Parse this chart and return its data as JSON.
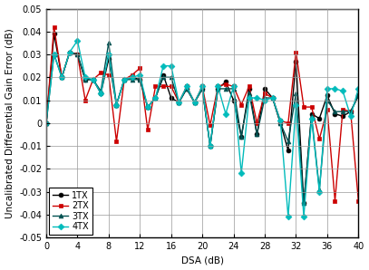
{
  "xlabel": "DSA (dB)",
  "ylabel": "Uncalibrated Differential Gain Error (dB)",
  "xlim": [
    0,
    40
  ],
  "ylim": [
    -0.05,
    0.05
  ],
  "xticks": [
    0,
    4,
    8,
    12,
    16,
    20,
    24,
    28,
    32,
    36,
    40
  ],
  "yticks": [
    -0.05,
    -0.04,
    -0.03,
    -0.02,
    -0.01,
    0.0,
    0.01,
    0.02,
    0.03,
    0.04,
    0.05
  ],
  "dsa": [
    0,
    1,
    2,
    3,
    4,
    5,
    6,
    7,
    8,
    9,
    10,
    11,
    12,
    13,
    14,
    15,
    16,
    17,
    18,
    19,
    20,
    21,
    22,
    23,
    24,
    25,
    26,
    27,
    28,
    29,
    30,
    31,
    32,
    33,
    34,
    35,
    36,
    37,
    38,
    39,
    40
  ],
  "tx1": [
    0.0,
    0.039,
    0.02,
    0.031,
    0.03,
    0.019,
    0.019,
    0.013,
    0.028,
    0.008,
    0.019,
    0.02,
    0.019,
    0.007,
    0.011,
    0.021,
    0.011,
    0.009,
    0.015,
    0.009,
    0.015,
    -0.01,
    0.015,
    0.018,
    0.01,
    -0.006,
    0.015,
    -0.005,
    0.015,
    0.011,
    0.0,
    -0.012,
    0.027,
    -0.035,
    0.004,
    0.002,
    0.012,
    0.004,
    0.003,
    0.005,
    0.012
  ],
  "tx2": [
    0.0,
    0.042,
    0.02,
    0.031,
    0.03,
    0.01,
    0.019,
    0.022,
    0.021,
    -0.008,
    0.019,
    0.021,
    0.024,
    -0.003,
    0.016,
    0.016,
    0.016,
    0.009,
    0.016,
    0.009,
    0.016,
    -0.001,
    0.016,
    0.017,
    0.016,
    0.008,
    0.016,
    0.0,
    0.013,
    0.011,
    0.001,
    0.0,
    0.031,
    0.007,
    0.007,
    -0.007,
    0.006,
    -0.034,
    0.006,
    0.005,
    -0.034
  ],
  "tx3": [
    0.0,
    0.03,
    0.02,
    0.031,
    0.03,
    0.019,
    0.019,
    0.014,
    0.035,
    0.008,
    0.019,
    0.019,
    0.019,
    0.007,
    0.011,
    0.02,
    0.02,
    0.009,
    0.015,
    0.009,
    0.015,
    -0.01,
    0.015,
    0.015,
    0.015,
    -0.006,
    0.013,
    -0.005,
    0.011,
    0.011,
    0.0,
    -0.008,
    0.013,
    -0.035,
    0.003,
    -0.029,
    0.01,
    0.005,
    0.005,
    0.005,
    0.012
  ],
  "tx4": [
    0.0,
    0.03,
    0.02,
    0.031,
    0.036,
    0.02,
    0.019,
    0.013,
    0.03,
    0.008,
    0.019,
    0.02,
    0.021,
    0.007,
    0.011,
    0.025,
    0.025,
    0.009,
    0.016,
    0.009,
    0.016,
    -0.01,
    0.016,
    0.004,
    0.016,
    -0.022,
    0.011,
    0.011,
    0.01,
    0.011,
    0.001,
    -0.041,
    0.008,
    -0.041,
    0.002,
    -0.03,
    0.015,
    0.015,
    0.014,
    0.003,
    0.015
  ],
  "colors": {
    "tx1": "#000000",
    "tx2": "#cc0000",
    "tx3": "#005050",
    "tx4": "#00bbbb"
  },
  "linewidths": 1.0,
  "markersize": 3.5,
  "tick_fontsize": 7,
  "label_fontsize": 7.5,
  "legend_fontsize": 7
}
